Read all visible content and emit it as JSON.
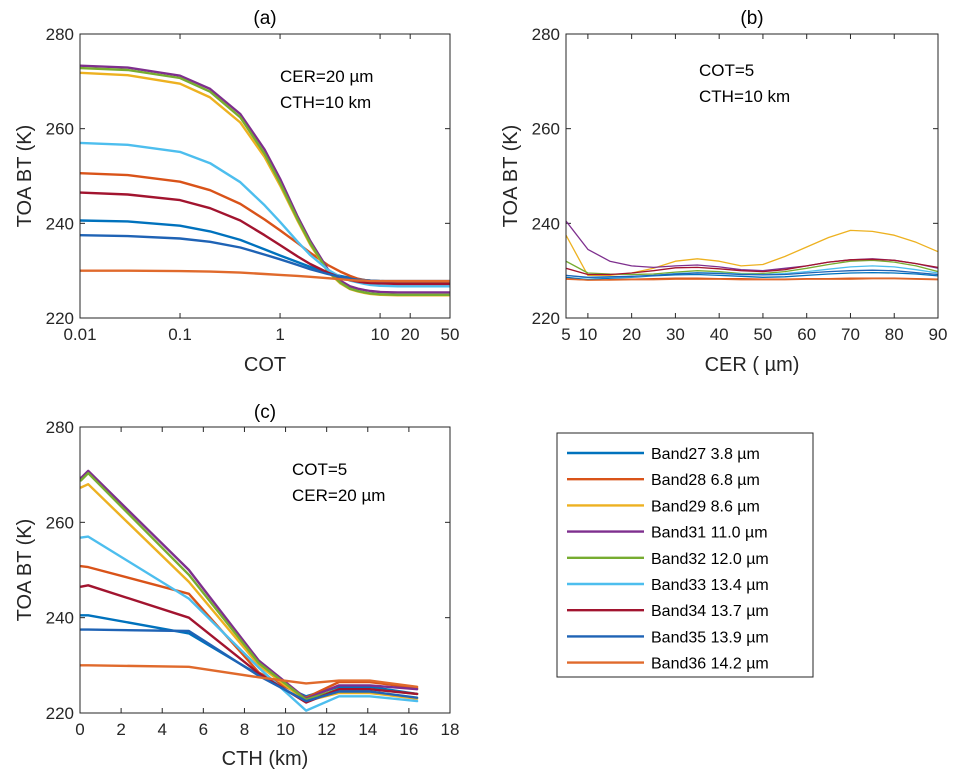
{
  "figure": {
    "legend": {
      "entries": [
        "Band27 3.8 µm",
        "Band28 6.8 µm",
        "Band29 8.6 µm",
        "Band31 11.0 µm",
        "Band32 12.0 µm",
        "Band33 13.4 µm",
        "Band34 13.7 µm",
        "Band35 13.9 µm",
        "Band36 14.2 µm"
      ],
      "colors": [
        "#0072BD",
        "#D95319",
        "#EDB120",
        "#7E2F8E",
        "#77AC30",
        "#4DBEEE",
        "#A2142F",
        "#1F63B5",
        "#E06A2C"
      ]
    }
  },
  "chart_data": [
    {
      "id": "a",
      "type": "line",
      "title": "(a)",
      "xlabel": "COT",
      "ylabel": "TOA BT (K)",
      "xscale": "log",
      "xlim": [
        0.01,
        50
      ],
      "ylim": [
        220,
        280
      ],
      "xticks": [
        0.01,
        0.1,
        1,
        10,
        20,
        50
      ],
      "xticklabels": [
        "0.01",
        "0.1",
        "1",
        "10",
        "20",
        "50"
      ],
      "yticks": [
        220,
        240,
        260,
        280
      ],
      "yticklabels": [
        "220",
        "240",
        "260",
        "280"
      ],
      "annotations": [
        "CER=20  µm",
        "CTH=10 km"
      ],
      "x": [
        0.01,
        0.03,
        0.1,
        0.2,
        0.4,
        0.7,
        1,
        1.5,
        2,
        3,
        4,
        5,
        6,
        7,
        8,
        10,
        15,
        20,
        30,
        50
      ],
      "series": [
        {
          "name": "Band27 3.8 µm",
          "values": [
            240.6,
            240.4,
            239.5,
            238.3,
            236.5,
            234.5,
            233.2,
            231.8,
            230.8,
            229.6,
            228.9,
            228.5,
            228.2,
            228.0,
            227.9,
            227.8,
            227.7,
            227.7,
            227.7,
            227.7
          ]
        },
        {
          "name": "Band28 6.8 µm",
          "values": [
            250.6,
            250.2,
            248.8,
            247.0,
            244.1,
            240.8,
            238.5,
            235.8,
            233.8,
            231.2,
            229.8,
            228.9,
            228.3,
            228.0,
            227.8,
            227.5,
            227.4,
            227.4,
            227.4,
            227.4
          ]
        },
        {
          "name": "Band29 8.6 µm",
          "values": [
            271.8,
            271.3,
            269.5,
            266.6,
            261.3,
            254.0,
            248.0,
            240.5,
            235.5,
            229.8,
            227.3,
            226.1,
            225.6,
            225.3,
            225.1,
            224.9,
            224.8,
            224.8,
            224.8,
            224.8
          ]
        },
        {
          "name": "Band31 11.0 µm",
          "values": [
            273.3,
            272.9,
            271.2,
            268.4,
            263.1,
            255.6,
            249.4,
            241.4,
            236.3,
            230.3,
            227.9,
            226.7,
            226.2,
            225.9,
            225.7,
            225.5,
            225.4,
            225.4,
            225.4,
            225.4
          ]
        },
        {
          "name": "Band32 12.0 µm",
          "values": [
            272.8,
            272.4,
            270.7,
            267.8,
            262.4,
            254.7,
            248.5,
            240.8,
            235.8,
            229.9,
            227.5,
            226.2,
            225.7,
            225.4,
            225.2,
            225.0,
            224.9,
            224.9,
            224.9,
            224.9
          ]
        },
        {
          "name": "Band33 13.4 µm",
          "values": [
            257.0,
            256.6,
            255.1,
            252.7,
            248.7,
            243.8,
            240.3,
            236.1,
            233.3,
            230.2,
            228.7,
            227.9,
            227.5,
            227.2,
            227.0,
            226.8,
            226.7,
            226.7,
            226.7,
            226.7
          ]
        },
        {
          "name": "Band34 13.7 µm",
          "values": [
            246.5,
            246.1,
            244.9,
            243.2,
            240.6,
            237.5,
            235.4,
            233.0,
            231.4,
            229.6,
            228.6,
            228.0,
            227.7,
            227.5,
            227.4,
            227.3,
            227.2,
            227.2,
            227.2,
            227.2
          ]
        },
        {
          "name": "Band35 13.9 µm",
          "values": [
            237.5,
            237.3,
            236.8,
            236.1,
            234.9,
            233.4,
            232.4,
            231.2,
            230.3,
            229.3,
            228.7,
            228.3,
            228.1,
            228.0,
            227.9,
            227.8,
            227.8,
            227.8,
            227.8,
            227.8
          ]
        },
        {
          "name": "Band36 14.2 µm",
          "values": [
            230.0,
            230.0,
            229.9,
            229.8,
            229.6,
            229.3,
            229.1,
            228.9,
            228.7,
            228.4,
            228.2,
            228.0,
            227.9,
            227.9,
            227.8,
            227.8,
            227.8,
            227.8,
            227.8,
            227.8
          ]
        }
      ]
    },
    {
      "id": "b",
      "type": "line",
      "title": "(b)",
      "xlabel": "CER ( µm)",
      "ylabel": "TOA BT (K)",
      "xscale": "linear",
      "xlim": [
        5,
        90
      ],
      "ylim": [
        220,
        280
      ],
      "xticks": [
        5,
        10,
        20,
        30,
        40,
        50,
        60,
        70,
        80,
        90
      ],
      "xticklabels": [
        "5",
        "10",
        "20",
        "30",
        "40",
        "50",
        "60",
        "70",
        "80",
        "90"
      ],
      "yticks": [
        220,
        240,
        260,
        280
      ],
      "yticklabels": [
        "220",
        "240",
        "260",
        "280"
      ],
      "annotations": [
        "COT=5",
        "CTH=10 km"
      ],
      "x": [
        5,
        10,
        15,
        20,
        25,
        30,
        35,
        40,
        45,
        50,
        55,
        60,
        65,
        70,
        75,
        80,
        85,
        90
      ],
      "series": [
        {
          "name": "Band27 3.8 µm",
          "values": [
            228.6,
            228.1,
            228.4,
            228.6,
            228.9,
            229.1,
            229.2,
            229.0,
            228.8,
            228.6,
            228.7,
            229.0,
            229.3,
            229.5,
            229.6,
            229.5,
            229.3,
            228.9
          ]
        },
        {
          "name": "Band28 6.8 µm",
          "values": [
            228.3,
            228.0,
            228.1,
            228.2,
            228.3,
            228.4,
            228.4,
            228.3,
            228.3,
            228.2,
            228.2,
            228.3,
            228.3,
            228.4,
            228.4,
            228.4,
            228.3,
            228.2
          ]
        },
        {
          "name": "Band29 8.6 µm",
          "values": [
            237.5,
            229.0,
            229.0,
            229.5,
            230.5,
            232.0,
            232.5,
            232.0,
            231.0,
            231.3,
            233.0,
            235.0,
            237.0,
            238.5,
            238.3,
            237.5,
            236.0,
            234.0
          ]
        },
        {
          "name": "Band31 11.0 µm",
          "values": [
            240.5,
            234.5,
            232.0,
            231.0,
            230.7,
            231.0,
            231.2,
            230.8,
            230.2,
            230.0,
            230.5,
            231.0,
            231.8,
            232.3,
            232.5,
            232.2,
            231.5,
            230.5
          ]
        },
        {
          "name": "Band32 12.0 µm",
          "values": [
            232.0,
            229.5,
            229.3,
            229.2,
            229.3,
            229.7,
            230.0,
            229.8,
            229.4,
            229.4,
            229.8,
            230.5,
            231.3,
            232.0,
            232.2,
            231.8,
            231.0,
            229.8
          ]
        },
        {
          "name": "Band33 13.4 µm",
          "values": [
            229.0,
            228.5,
            228.6,
            228.7,
            229.0,
            229.4,
            229.6,
            229.5,
            229.3,
            229.2,
            229.4,
            229.8,
            230.3,
            230.8,
            231.0,
            230.8,
            230.2,
            229.5
          ]
        },
        {
          "name": "Band34 13.7 µm",
          "values": [
            230.5,
            229.2,
            229.2,
            229.5,
            230.0,
            230.6,
            230.7,
            230.4,
            230.0,
            229.8,
            230.2,
            231.0,
            231.8,
            232.3,
            232.4,
            232.2,
            231.5,
            230.7
          ]
        },
        {
          "name": "Band35 13.9 µm",
          "values": [
            229.0,
            228.6,
            228.7,
            228.8,
            229.0,
            229.3,
            229.5,
            229.4,
            229.2,
            229.1,
            229.2,
            229.5,
            229.8,
            230.0,
            230.1,
            230.0,
            229.6,
            229.2
          ]
        },
        {
          "name": "Band36 14.2 µm",
          "values": [
            228.2,
            228.0,
            228.0,
            228.1,
            228.1,
            228.2,
            228.2,
            228.2,
            228.1,
            228.1,
            228.1,
            228.2,
            228.2,
            228.2,
            228.3,
            228.3,
            228.2,
            228.1
          ]
        }
      ]
    },
    {
      "id": "c",
      "type": "line",
      "title": "(c)",
      "xlabel": "CTH (km)",
      "ylabel": "TOA BT (K)",
      "xscale": "linear",
      "xlim": [
        0,
        18
      ],
      "ylim": [
        220,
        280
      ],
      "xticks": [
        0,
        2,
        4,
        6,
        8,
        10,
        12,
        14,
        16,
        18
      ],
      "xticklabels": [
        "0",
        "2",
        "4",
        "6",
        "8",
        "10",
        "12",
        "14",
        "16",
        "18"
      ],
      "yticks": [
        220,
        240,
        260,
        280
      ],
      "yticklabels": [
        "220",
        "240",
        "260",
        "280"
      ],
      "annotations": [
        "COT=5",
        "CER=20  µm"
      ],
      "x": [
        0.05,
        0.4,
        5.3,
        8.7,
        11.0,
        12.6,
        14.1,
        16.4
      ],
      "series": [
        {
          "name": "Band27 3.8 µm",
          "values": [
            240.5,
            240.5,
            236.7,
            228.0,
            223.5,
            225.5,
            225.5,
            224.0
          ]
        },
        {
          "name": "Band28 6.8 µm",
          "values": [
            250.8,
            250.6,
            245.0,
            228.5,
            223.2,
            226.5,
            226.5,
            225.2
          ]
        },
        {
          "name": "Band29 8.6 µm",
          "values": [
            267.3,
            268.0,
            247.5,
            230.0,
            222.5,
            224.2,
            224.2,
            223.0
          ]
        },
        {
          "name": "Band31 11.0 µm",
          "values": [
            269.3,
            270.8,
            250.0,
            231.0,
            223.0,
            225.8,
            225.8,
            225.0
          ]
        },
        {
          "name": "Band32 12.0 µm",
          "values": [
            268.8,
            270.3,
            249.0,
            230.5,
            222.8,
            225.0,
            225.0,
            224.0
          ]
        },
        {
          "name": "Band33 13.4 µm",
          "values": [
            256.8,
            257.0,
            244.0,
            229.5,
            220.5,
            223.5,
            223.5,
            222.5
          ]
        },
        {
          "name": "Band34 13.7 µm",
          "values": [
            246.5,
            246.8,
            240.0,
            228.3,
            222.2,
            225.0,
            225.0,
            224.0
          ]
        },
        {
          "name": "Band35 13.9 µm",
          "values": [
            237.5,
            237.5,
            237.2,
            227.8,
            222.5,
            224.5,
            224.5,
            223.2
          ]
        },
        {
          "name": "Band36 14.2 µm",
          "values": [
            230.0,
            230.0,
            229.7,
            227.5,
            226.2,
            226.8,
            226.8,
            225.5
          ]
        }
      ]
    }
  ]
}
